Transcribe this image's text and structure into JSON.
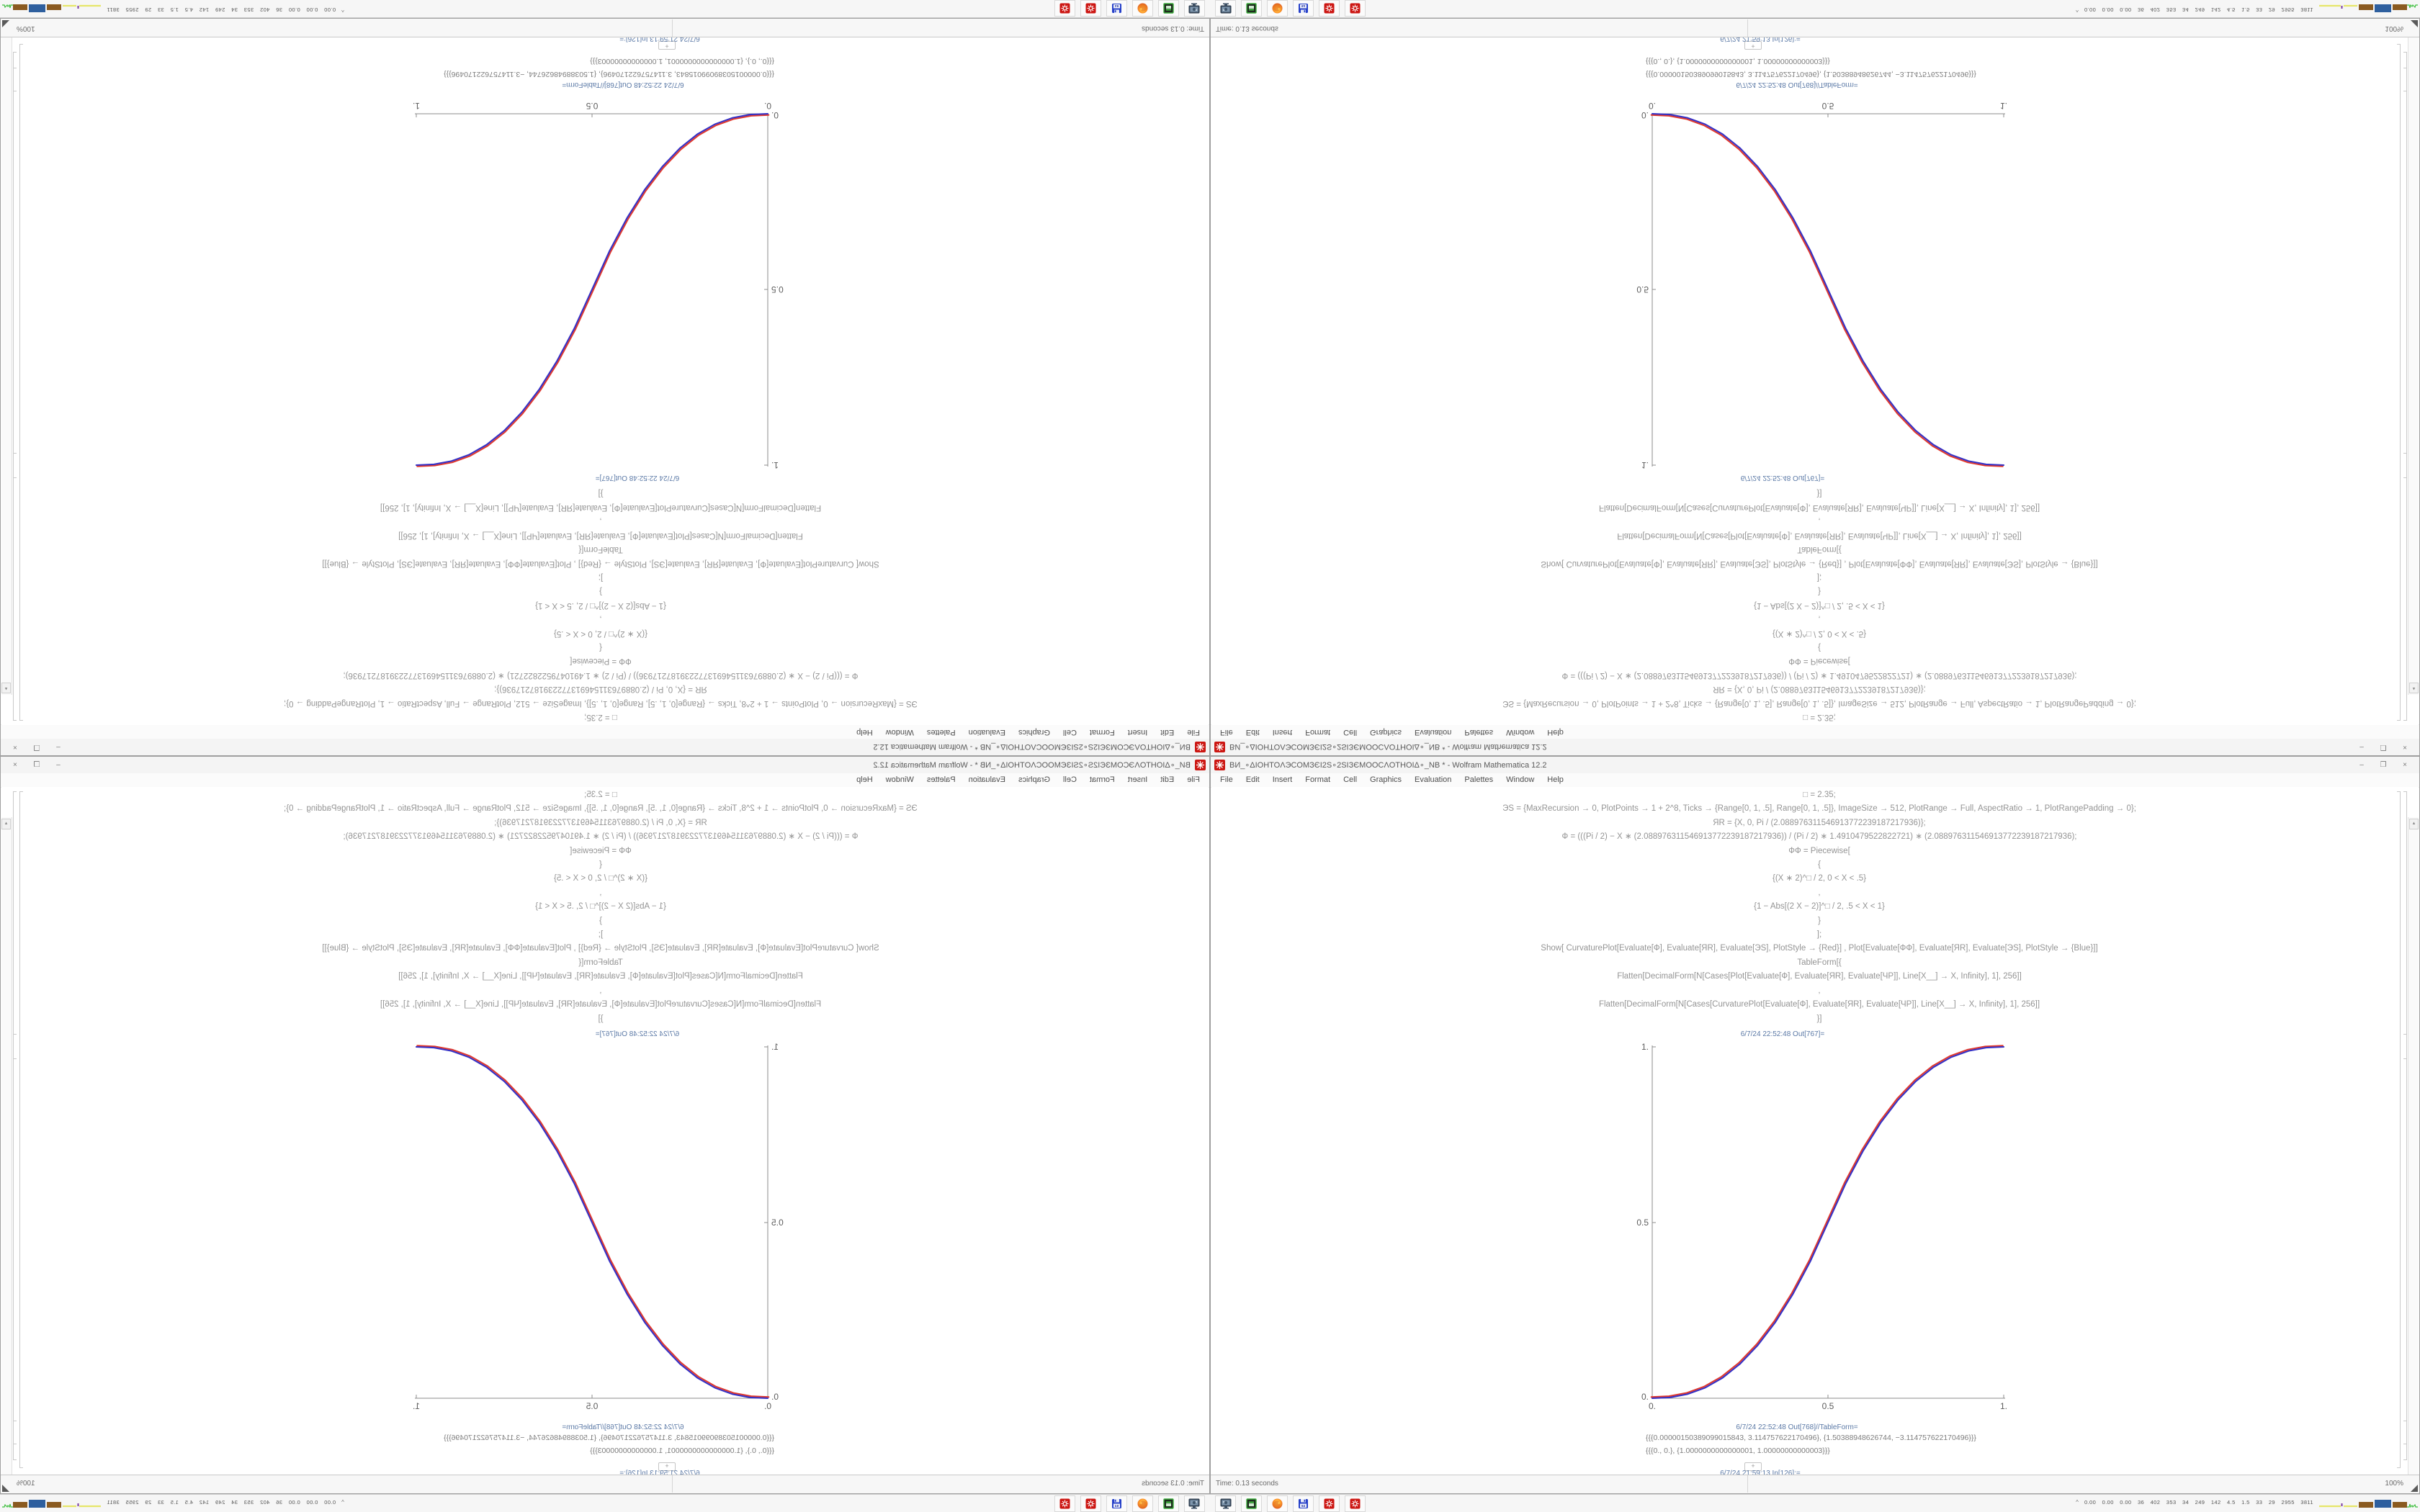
{
  "app": {
    "name": "Wolfram Mathematica",
    "version": "12.2"
  },
  "window": {
    "title": "ВИ_∘ΔIOHTOΛЭCOMЗЄI2Ѕ∘2ЅIЗЄMOOCΛOTHOIΔ∘_NB * - Wolfram Mathematica 12.2",
    "buttons": {
      "minimize": "–",
      "maximize": "❐",
      "close": "×"
    },
    "menu": [
      "File",
      "Edit",
      "Insert",
      "Format",
      "Cell",
      "Graphics",
      "Evaluation",
      "Palettes",
      "Window",
      "Help"
    ],
    "statusbar": {
      "time": "Time: 0.13 seconds",
      "zoom_level": "100%"
    }
  },
  "notebook": {
    "code_lines": [
      "□ = 2.35;",
      "ЭЅ = {MaxRecursion → 0, PlotPoints → 1 + 2^8, Ticks → {Range[0, 1, .5], Range[0, 1, .5]}, ImageSize → 512, PlotRange → Full, AspectRatio → 1, PlotRangePadding → 0};",
      "ЯR = {X, 0, Pi / (2.088976311546913772239187217936)};",
      "Ф = (((Pi / 2) − X ∗ (2.088976311546913772239187217936)) / (Pi / 2) ∗ 1.4910479522822721) ∗ (2.088976311546913772239187217936);",
      "ФФ = Piecewise[",
      "{",
      "{(X ∗ 2)^□ / 2, 0 < X < .5}",
      ",",
      "{1 − Abs[(2 X − 2)]^□ / 2, .5 < X < 1}",
      "}",
      "];",
      "Show[  CurvaturePlot[Evaluate[Ф], Evaluate[ЯR], Evaluate[ЭЅ], PlotStyle → {Red}]  ,   Plot[Evaluate[ФФ], Evaluate[ЯR], Evaluate[ЭЅ],  PlotStyle → {Blue}]]",
      "TableForm[{",
      "Flatten[DecimalForm[N[Cases[Plot[Evaluate[Ф], Evaluate[ЯR], Evaluate[ЧР]], Line[X__] → X, Infinity], 1], 256]]",
      ",",
      "Flatten[DecimalForm[N[Cases[CurvaturePlot[Evaluate[Ф], Evaluate[ЯR], Evaluate[ЧР]], Line[X__] → X, Infinity], 1], 256]]",
      "}]"
    ],
    "out_plot_label": "6/7/24 22:52:48 Out[767]=",
    "out_table_label": "6/7/24 22:52:48 Out[768]//TableForm=",
    "table_rows": [
      "{{{0.00000150389099015843, 3.114757622170496}, {1.50388948626744, −3.114757622170496}}}",
      "{{{0., 0.}, {1.0000000000000001, 1.00000000000003}}}"
    ],
    "insert_plus": "+",
    "next_cell_label": "6/7/24 21:59:13 In[126]:=",
    "scroll_up_glyph": "▲"
  },
  "taskbar": {
    "icons": [
      "system-monitor",
      "package-manager",
      "firefox",
      "installer-64",
      "mathematica-session-1",
      "mathematica-session-2"
    ],
    "installer_64_label": "64",
    "tray": {
      "expand_arrow": "^",
      "numbers": "0.00 0.00 0.00 36 402 353 34 249 142 4.5 1.5 33 29 2955 3811"
    }
  },
  "colors": {
    "curve_red": "#e0392e",
    "curve_blue": "#3431c6",
    "cell_label_blue": "#5b79a6",
    "mathematica_red": "#cc1612"
  },
  "layout_note_as_seen": "same desktop repeated 4x: bottom-right normal, bottom-left mirrored horizontally, top-left rotated 180deg, top-right flipped vertically",
  "chart_data": {
    "type": "line",
    "title": "Out[767]= : CurvaturePlot (red) and Plot (blue) overlaid piecewise smoothstep",
    "function": "y=(2x)^2.35/2 for 0<x<0.5 ; y=1-(2-2x)^2.35/2 for 0.5<x<1",
    "x": [
      0,
      0.05,
      0.1,
      0.15,
      0.2,
      0.25,
      0.3,
      0.35,
      0.4,
      0.45,
      0.5,
      0.55,
      0.6,
      0.65,
      0.7,
      0.75,
      0.8,
      0.85,
      0.9,
      0.95,
      1
    ],
    "series": [
      {
        "name": "CurvaturePlot[Ф] (Red)",
        "color": "#e0392e",
        "values": [
          0,
          0.0022,
          0.0114,
          0.0295,
          0.058,
          0.098,
          0.1505,
          0.216,
          0.296,
          0.39,
          0.5,
          0.61,
          0.704,
          0.784,
          0.8495,
          0.902,
          0.942,
          0.9705,
          0.9886,
          0.9978,
          1
        ]
      },
      {
        "name": "Plot[ФФ] (Blue)",
        "color": "#3431c6",
        "values": [
          0,
          0.0022,
          0.0114,
          0.0295,
          0.058,
          0.098,
          0.1505,
          0.216,
          0.296,
          0.39,
          0.5,
          0.61,
          0.704,
          0.784,
          0.8495,
          0.902,
          0.942,
          0.9705,
          0.9886,
          0.9978,
          1
        ]
      }
    ],
    "xlabel": "",
    "ylabel": "",
    "xlim": [
      0,
      1
    ],
    "ylim": [
      0,
      1
    ],
    "xticks": [
      {
        "v": 0,
        "label": "0."
      },
      {
        "v": 0.5,
        "label": "0.5"
      },
      {
        "v": 1,
        "label": "1."
      }
    ],
    "yticks": [
      {
        "v": 0,
        "label": "0."
      },
      {
        "v": 0.5,
        "label": "0.5"
      },
      {
        "v": 1,
        "label": "1."
      }
    ],
    "grid": false,
    "legend_position": "none"
  }
}
